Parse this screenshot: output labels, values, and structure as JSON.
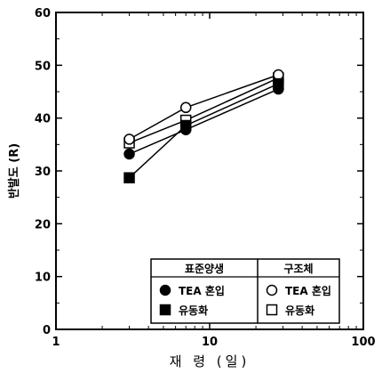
{
  "chart_data": {
    "type": "line",
    "xlabel": "재 령 (일)",
    "ylabel": "반발도 (R)",
    "xscale": "log",
    "xlim": [
      1,
      100
    ],
    "ylim": [
      0,
      60
    ],
    "xticks": [
      1,
      10,
      100
    ],
    "xtick_labels": [
      "1",
      "10",
      "100"
    ],
    "yticks": [
      0,
      10,
      20,
      30,
      40,
      50,
      60
    ],
    "ytick_labels": [
      "0",
      "10",
      "20",
      "30",
      "40",
      "50",
      "60"
    ],
    "x": [
      3,
      7,
      28
    ],
    "series": [
      {
        "name": "TEA 혼입",
        "group": "표준양생",
        "marker": "circle",
        "filled": true,
        "values": [
          33.2,
          37.8,
          45.5
        ]
      },
      {
        "name": "유동화",
        "group": "표준양생",
        "marker": "square",
        "filled": true,
        "values": [
          28.7,
          38.6,
          46.5
        ]
      },
      {
        "name": "TEA 혼입",
        "group": "구조체",
        "marker": "circle",
        "filled": false,
        "values": [
          36.0,
          42.0,
          48.2
        ]
      },
      {
        "name": "유동화",
        "group": "구조체",
        "marker": "square",
        "filled": false,
        "values": [
          35.3,
          39.6,
          47.6
        ]
      }
    ],
    "legend": {
      "placement": "bottom-right",
      "groups": [
        {
          "title": "표준양생",
          "items": [
            {
              "label": "TEA 혼입",
              "marker": "circle",
              "filled": true
            },
            {
              "label": "유동화",
              "marker": "square",
              "filled": true
            }
          ]
        },
        {
          "title": "구조체",
          "items": [
            {
              "label": "TEA 혼입",
              "marker": "circle",
              "filled": false
            },
            {
              "label": "유동화",
              "marker": "square",
              "filled": false
            }
          ]
        }
      ]
    },
    "grid": false,
    "colors": {
      "line": "#000000",
      "marker_fill": "#000000",
      "background": "#ffffff"
    }
  }
}
